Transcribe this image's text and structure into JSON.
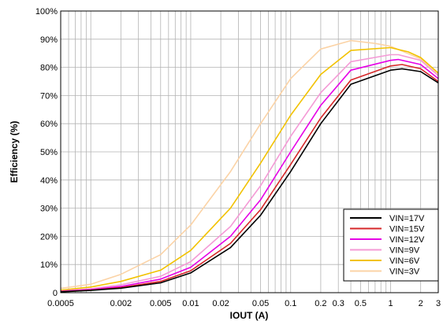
{
  "chart_data": {
    "type": "line",
    "xlabel": "IOUT (A)",
    "ylabel": "Efficiency (%)",
    "x_scale": "log",
    "xlim": [
      0.0005,
      3
    ],
    "ylim": [
      0,
      100
    ],
    "grid": true,
    "legend_position": "bottom-right",
    "x_ticks": [
      {
        "value": 0.0005,
        "label": "0.0005"
      },
      {
        "value": 0.002,
        "label": "0.002"
      },
      {
        "value": 0.005,
        "label": "0.005"
      },
      {
        "value": 0.01,
        "label": "0.01"
      },
      {
        "value": 0.02,
        "label": "0.02"
      },
      {
        "value": 0.05,
        "label": "0.05"
      },
      {
        "value": 0.1,
        "label": "0.1"
      },
      {
        "value": 0.2,
        "label": "0.2"
      },
      {
        "value": 0.3,
        "label": "0.3"
      },
      {
        "value": 0.5,
        "label": "0.5"
      },
      {
        "value": 1,
        "label": "1"
      },
      {
        "value": 2,
        "label": "2"
      },
      {
        "value": 3,
        "label": "3"
      }
    ],
    "y_ticks": [
      {
        "value": 0,
        "label": "0"
      },
      {
        "value": 10,
        "label": "10%"
      },
      {
        "value": 20,
        "label": "20%"
      },
      {
        "value": 30,
        "label": "30%"
      },
      {
        "value": 40,
        "label": "40%"
      },
      {
        "value": 50,
        "label": "50%"
      },
      {
        "value": 60,
        "label": "60%"
      },
      {
        "value": 70,
        "label": "70%"
      },
      {
        "value": 80,
        "label": "80%"
      },
      {
        "value": 90,
        "label": "90%"
      },
      {
        "value": 100,
        "label": "100%"
      }
    ],
    "series": [
      {
        "name": "VIN=17V",
        "color": "#000000",
        "points": [
          [
            0.0005,
            0.3
          ],
          [
            0.001,
            0.8
          ],
          [
            0.002,
            1.6
          ],
          [
            0.005,
            3.5
          ],
          [
            0.01,
            7.0
          ],
          [
            0.025,
            16.0
          ],
          [
            0.05,
            27.5
          ],
          [
            0.1,
            43.0
          ],
          [
            0.2,
            60.0
          ],
          [
            0.4,
            74.0
          ],
          [
            1.0,
            79.0
          ],
          [
            1.3,
            79.5
          ],
          [
            2.0,
            78.5
          ],
          [
            3.0,
            74.5
          ]
        ]
      },
      {
        "name": "VIN=15V",
        "color": "#d62728",
        "points": [
          [
            0.0005,
            0.4
          ],
          [
            0.001,
            0.9
          ],
          [
            0.002,
            1.8
          ],
          [
            0.005,
            4.0
          ],
          [
            0.01,
            7.8
          ],
          [
            0.025,
            17.5
          ],
          [
            0.05,
            29.5
          ],
          [
            0.1,
            45.5
          ],
          [
            0.2,
            62.0
          ],
          [
            0.4,
            75.5
          ],
          [
            1.0,
            80.5
          ],
          [
            1.3,
            81.0
          ],
          [
            2.0,
            79.5
          ],
          [
            3.0,
            75.0
          ]
        ]
      },
      {
        "name": "VIN=12V",
        "color": "#e600e6",
        "points": [
          [
            0.0005,
            0.5
          ],
          [
            0.001,
            1.1
          ],
          [
            0.002,
            2.2
          ],
          [
            0.005,
            4.8
          ],
          [
            0.01,
            9.0
          ],
          [
            0.025,
            20.0
          ],
          [
            0.05,
            33.0
          ],
          [
            0.1,
            50.0
          ],
          [
            0.2,
            66.5
          ],
          [
            0.4,
            79.0
          ],
          [
            1.0,
            82.5
          ],
          [
            1.2,
            82.8
          ],
          [
            2.0,
            81.0
          ],
          [
            3.0,
            76.0
          ]
        ]
      },
      {
        "name": "VIN=9V",
        "color": "#f49ad6",
        "points": [
          [
            0.0005,
            0.6
          ],
          [
            0.001,
            1.4
          ],
          [
            0.002,
            2.8
          ],
          [
            0.005,
            5.8
          ],
          [
            0.01,
            11.0
          ],
          [
            0.025,
            23.5
          ],
          [
            0.05,
            38.0
          ],
          [
            0.1,
            55.5
          ],
          [
            0.2,
            71.0
          ],
          [
            0.4,
            82.0
          ],
          [
            1.0,
            84.5
          ],
          [
            1.2,
            84.5
          ],
          [
            2.0,
            82.5
          ],
          [
            3.0,
            77.0
          ]
        ]
      },
      {
        "name": "VIN=6V",
        "color": "#f2c200",
        "points": [
          [
            0.0005,
            0.9
          ],
          [
            0.001,
            2.0
          ],
          [
            0.002,
            4.0
          ],
          [
            0.005,
            8.0
          ],
          [
            0.01,
            15.0
          ],
          [
            0.025,
            30.0
          ],
          [
            0.05,
            46.0
          ],
          [
            0.1,
            63.0
          ],
          [
            0.2,
            77.5
          ],
          [
            0.4,
            86.0
          ],
          [
            1.0,
            87.0
          ],
          [
            1.5,
            85.5
          ],
          [
            2.0,
            83.5
          ],
          [
            3.0,
            78.0
          ]
        ]
      },
      {
        "name": "VIN=3V",
        "color": "#fbd3a6",
        "points": [
          [
            0.0005,
            1.5
          ],
          [
            0.001,
            3.0
          ],
          [
            0.002,
            6.5
          ],
          [
            0.005,
            13.5
          ],
          [
            0.01,
            24.0
          ],
          [
            0.025,
            43.0
          ],
          [
            0.05,
            60.0
          ],
          [
            0.1,
            76.0
          ],
          [
            0.2,
            86.5
          ],
          [
            0.4,
            89.5
          ],
          [
            0.7,
            88.5
          ],
          [
            1.0,
            87.5
          ],
          [
            2.0,
            83.0
          ],
          [
            3.0,
            77.5
          ]
        ]
      }
    ]
  }
}
